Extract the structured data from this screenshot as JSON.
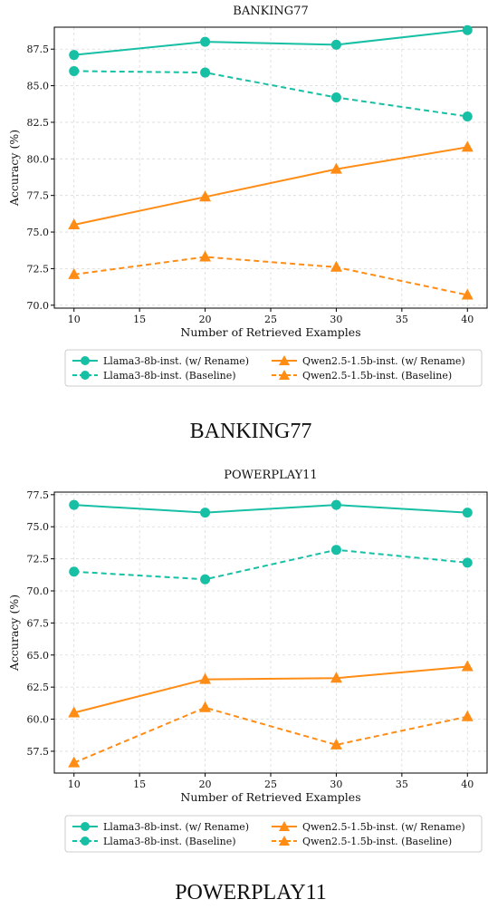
{
  "colors": {
    "teal": "#17bfa4",
    "orange": "#ff8c14",
    "grid": "#d9d9d9",
    "frame": "#000000"
  },
  "chart_data": [
    {
      "type": "line",
      "title": "BANKING77",
      "xlabel": "Number of Retrieved Examples",
      "ylabel": "Accuracy (%)",
      "x": [
        10,
        20,
        30,
        40
      ],
      "xlim": [
        8.5,
        41.5
      ],
      "ylim": [
        69.8,
        89.0
      ],
      "xticks": [
        10,
        15,
        20,
        25,
        30,
        35,
        40
      ],
      "yticks": [
        70.0,
        72.5,
        75.0,
        77.5,
        80.0,
        82.5,
        85.0,
        87.5
      ],
      "grid": true,
      "legend_position": "below",
      "series": [
        {
          "name": "Llama3-8b-inst. (w/ Rename)",
          "values": [
            87.1,
            88.0,
            87.8,
            88.8
          ],
          "color": "#17bfa4",
          "style": "solid",
          "marker": "circle"
        },
        {
          "name": "Llama3-8b-inst. (Baseline)",
          "values": [
            86.0,
            85.9,
            84.2,
            82.9
          ],
          "color": "#17bfa4",
          "style": "dashed",
          "marker": "circle"
        },
        {
          "name": "Qwen2.5-1.5b-inst. (w/ Rename)",
          "values": [
            75.5,
            77.4,
            79.3,
            80.8
          ],
          "color": "#ff8c14",
          "style": "solid",
          "marker": "triangle"
        },
        {
          "name": "Qwen2.5-1.5b-inst. (Baseline)",
          "values": [
            72.1,
            73.3,
            72.6,
            70.7
          ],
          "color": "#ff8c14",
          "style": "dashed",
          "marker": "triangle"
        }
      ]
    },
    {
      "type": "line",
      "title": "POWERPLAY11",
      "xlabel": "Number of Retrieved Examples",
      "ylabel": "Accuracy (%)",
      "x": [
        10,
        20,
        30,
        40
      ],
      "xlim": [
        8.5,
        41.5
      ],
      "ylim": [
        55.8,
        77.7
      ],
      "xticks": [
        10,
        15,
        20,
        25,
        30,
        35,
        40
      ],
      "yticks": [
        57.5,
        60.0,
        62.5,
        65.0,
        67.5,
        70.0,
        72.5,
        75.0,
        77.5
      ],
      "grid": true,
      "legend_position": "below",
      "series": [
        {
          "name": "Llama3-8b-inst. (w/ Rename)",
          "values": [
            76.7,
            76.1,
            76.7,
            76.1
          ],
          "color": "#17bfa4",
          "style": "solid",
          "marker": "circle"
        },
        {
          "name": "Llama3-8b-inst. (Baseline)",
          "values": [
            71.5,
            70.9,
            73.2,
            72.2
          ],
          "color": "#17bfa4",
          "style": "dashed",
          "marker": "circle"
        },
        {
          "name": "Qwen2.5-1.5b-inst. (w/ Rename)",
          "values": [
            60.5,
            63.1,
            63.2,
            64.1
          ],
          "color": "#ff8c14",
          "style": "solid",
          "marker": "triangle"
        },
        {
          "name": "Qwen2.5-1.5b-inst. (Baseline)",
          "values": [
            56.6,
            60.9,
            58.0,
            60.2
          ],
          "color": "#ff8c14",
          "style": "dashed",
          "marker": "triangle"
        }
      ]
    }
  ],
  "captions": [
    "BANKING77",
    "POWERPLAY11"
  ]
}
